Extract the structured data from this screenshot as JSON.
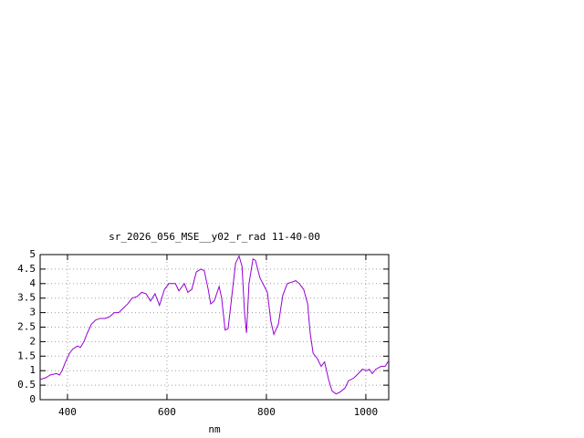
{
  "chart_data": {
    "type": "line",
    "title": "sr_2026_056_MSE__y02_r_rad 11-40-00",
    "x_label": "nm",
    "x": [
      345,
      356,
      365,
      378,
      384,
      389,
      396,
      404,
      411,
      420,
      426,
      433,
      440,
      448,
      457,
      466,
      475,
      484,
      494,
      503,
      512,
      521,
      530,
      540,
      549,
      558,
      567,
      576,
      585,
      595,
      604,
      617,
      624,
      635,
      642,
      650,
      659,
      668,
      675,
      683,
      688,
      695,
      705,
      710,
      717,
      723,
      730,
      738,
      745,
      751,
      756,
      760,
      765,
      773,
      778,
      787,
      796,
      802,
      809,
      815,
      824,
      833,
      842,
      851,
      859,
      866,
      875,
      883,
      888,
      894,
      903,
      910,
      917,
      925,
      932,
      940,
      947,
      958,
      965,
      976,
      985,
      993,
      1002,
      1007,
      1013,
      1020,
      1031,
      1039,
      1046
    ],
    "series": [
      {
        "color": "#9400d3",
        "values": [
          0.7,
          0.75,
          0.85,
          0.9,
          0.85,
          1.0,
          1.3,
          1.6,
          1.75,
          1.85,
          1.8,
          2.0,
          2.3,
          2.6,
          2.75,
          2.8,
          2.8,
          2.85,
          3.0,
          3.0,
          3.15,
          3.3,
          3.5,
          3.55,
          3.7,
          3.65,
          3.4,
          3.65,
          3.25,
          3.8,
          4.0,
          4.0,
          3.75,
          4.0,
          3.7,
          3.8,
          4.4,
          4.5,
          4.45,
          3.8,
          3.3,
          3.4,
          3.9,
          3.5,
          2.4,
          2.45,
          3.5,
          4.7,
          4.95,
          4.6,
          3.0,
          2.3,
          4.0,
          4.85,
          4.8,
          4.2,
          3.9,
          3.7,
          2.7,
          2.25,
          2.6,
          3.6,
          4.0,
          4.05,
          4.1,
          4.0,
          3.8,
          3.3,
          2.3,
          1.6,
          1.4,
          1.15,
          1.3,
          0.7,
          0.3,
          0.2,
          0.25,
          0.4,
          0.65,
          0.75,
          0.9,
          1.05,
          1.0,
          1.05,
          0.9,
          1.05,
          1.15,
          1.15,
          1.35
        ]
      }
    ],
    "xlim": [
      345,
      1046
    ],
    "xticks": [
      400,
      600,
      800,
      1000
    ],
    "ylim": [
      0,
      5
    ],
    "yticks": [
      0,
      0.5,
      1,
      1.5,
      2,
      2.5,
      3,
      3.5,
      4,
      4.5,
      5
    ],
    "grid": true
  }
}
